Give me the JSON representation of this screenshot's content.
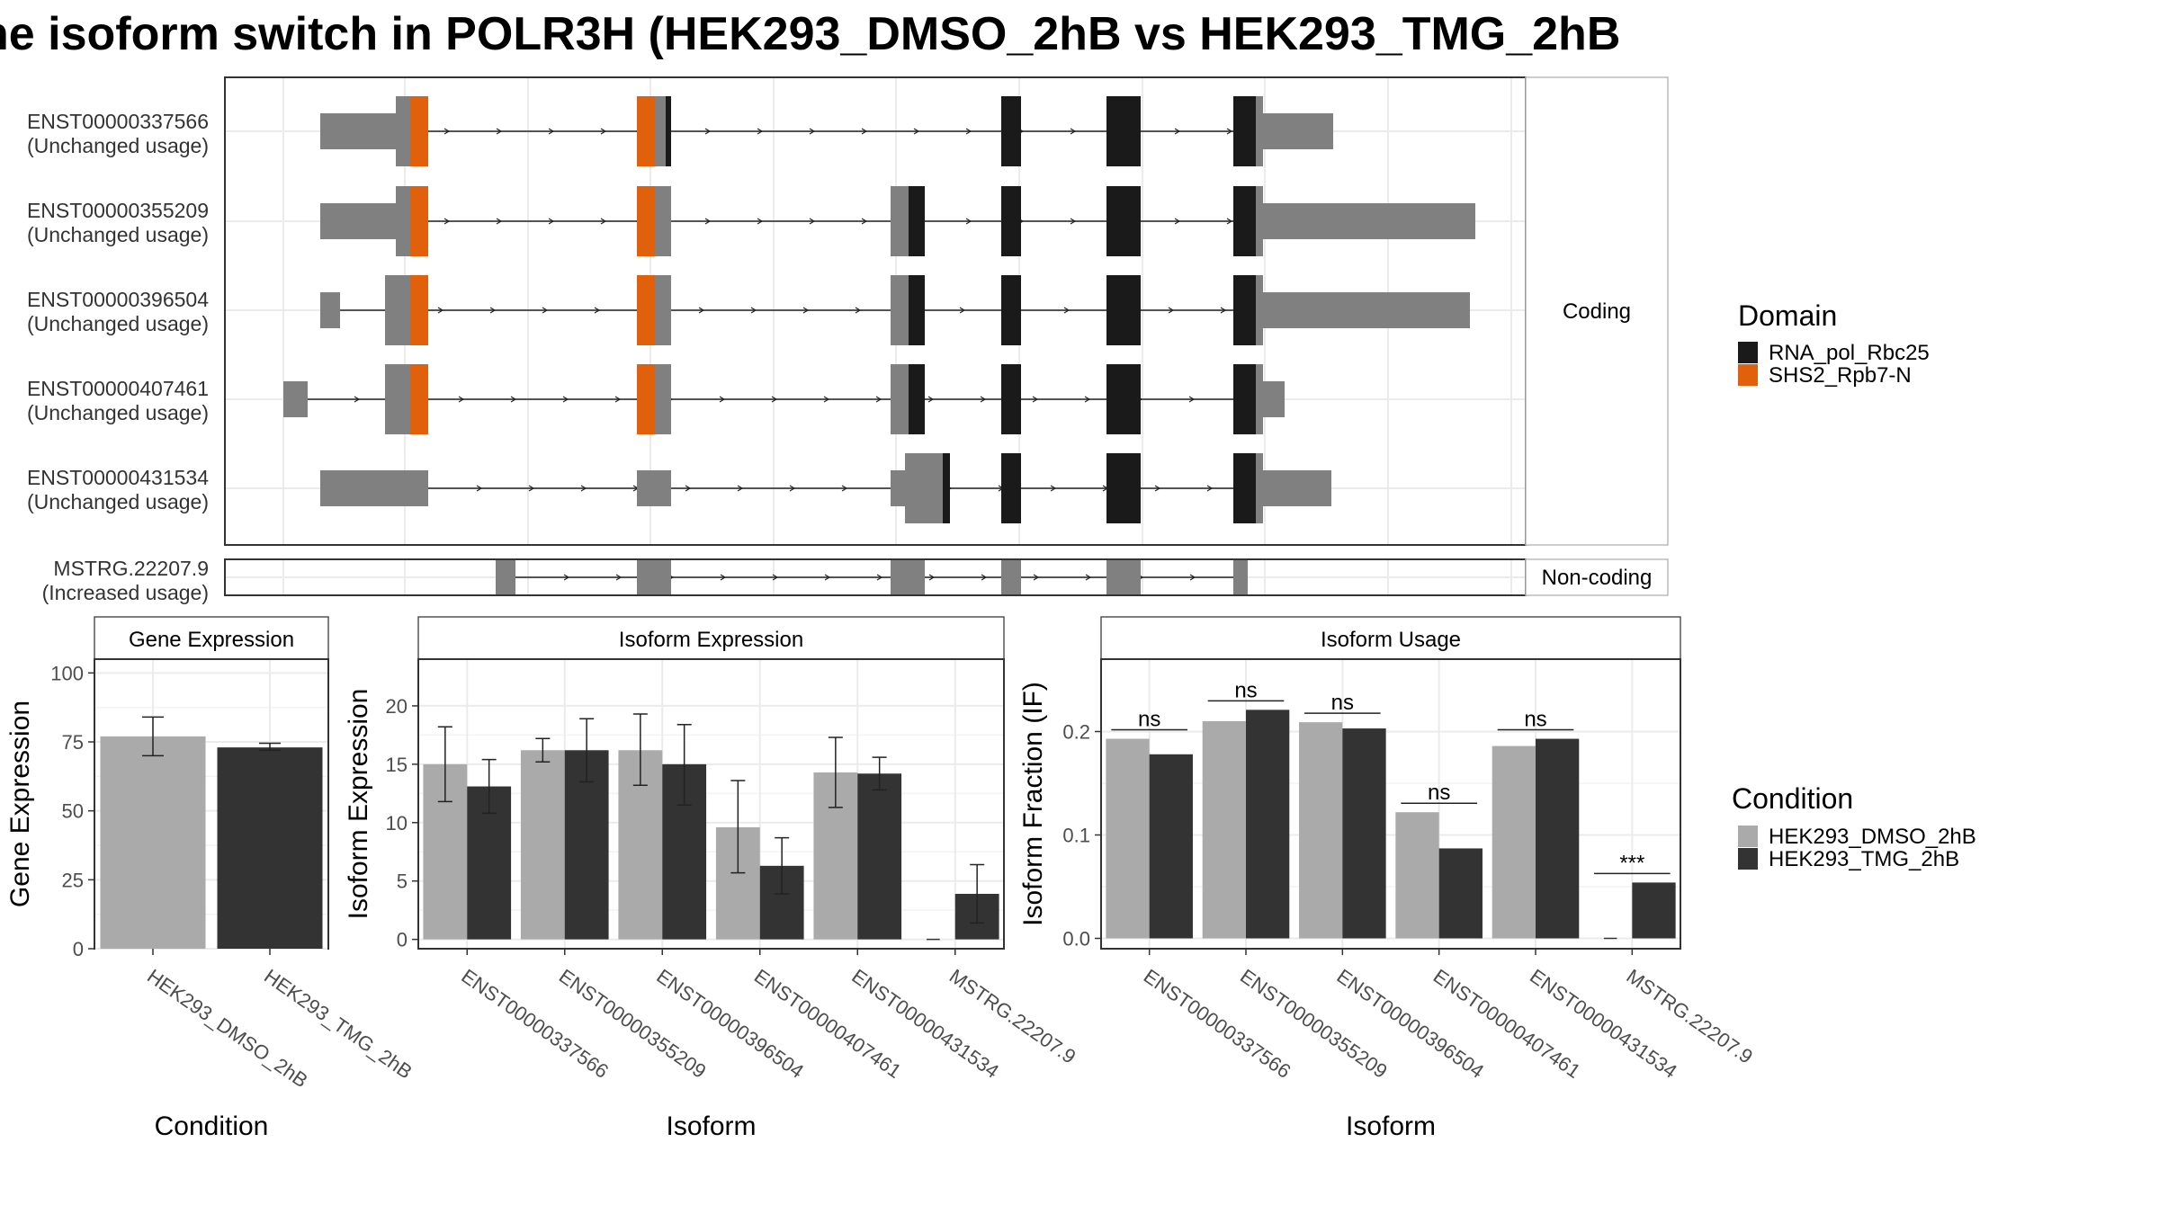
{
  "title": "ne isoform switch in POLR3H (HEK293_DMSO_2hB vs HEK293_TMG_2hB",
  "colors": {
    "utr": "#808080",
    "domain_rna_pol_rbc25": "#1a1a1a",
    "domain_shs2_rpb7n": "#e0600b",
    "dmso": "#aaaaaa",
    "tmg": "#333333",
    "grid": "#ebebeb"
  },
  "structure": {
    "coding_strip": "Coding",
    "noncoding_strip": "Non-coding",
    "transcripts": [
      {
        "id": "ENST00000337566",
        "status": "(Unchanged usage)"
      },
      {
        "id": "ENST00000355209",
        "status": "(Unchanged usage)"
      },
      {
        "id": "ENST00000396504",
        "status": "(Unchanged usage)"
      },
      {
        "id": "ENST00000407461",
        "status": "(Unchanged usage)"
      },
      {
        "id": "ENST00000431534",
        "status": "(Unchanged usage)"
      }
    ],
    "noncoding": {
      "id": "MSTRG.22207.9",
      "status": "(Increased usage)"
    }
  },
  "legend_domain": {
    "title": "Domain",
    "items": [
      "RNA_pol_Rbc25",
      "SHS2_Rpb7-N"
    ]
  },
  "legend_condition": {
    "title": "Condition",
    "items": [
      "HEK293_DMSO_2hB",
      "HEK293_TMG_2hB"
    ]
  },
  "chart_data": [
    {
      "type": "bar",
      "title": "Gene Expression",
      "xlabel": "Condition",
      "ylabel": "Gene Expression",
      "categories": [
        "HEK293_DMSO_2hB",
        "HEK293_TMG_2hB"
      ],
      "values": [
        77,
        73
      ],
      "error_low": [
        70,
        72
      ],
      "error_high": [
        84,
        74.5
      ],
      "ylim": [
        0,
        105
      ],
      "yticks": [
        0,
        25,
        50,
        75,
        100
      ]
    },
    {
      "type": "bar",
      "title": "Isoform Expression",
      "xlabel": "Isoform",
      "ylabel": "Isoform Expression",
      "categories": [
        "ENST00000337566",
        "ENST00000355209",
        "ENST00000396504",
        "ENST00000407461",
        "ENST00000431534",
        "MSTRG.22207.9"
      ],
      "series": [
        {
          "name": "HEK293_DMSO_2hB",
          "values": [
            15,
            16.2,
            16.2,
            9.6,
            14.3,
            0
          ],
          "error_low": [
            11.8,
            15.2,
            13.2,
            5.7,
            11.3,
            0
          ],
          "error_high": [
            18.2,
            17.2,
            19.3,
            13.6,
            17.3,
            0
          ]
        },
        {
          "name": "HEK293_TMG_2hB",
          "values": [
            13.1,
            16.2,
            15,
            6.3,
            14.2,
            3.9
          ],
          "error_low": [
            10.8,
            13.5,
            11.5,
            3.9,
            12.8,
            1.4
          ],
          "error_high": [
            15.4,
            18.9,
            18.4,
            8.7,
            15.6,
            6.4
          ]
        }
      ],
      "ylim": [
        -0.8,
        24
      ],
      "yticks": [
        0,
        5,
        10,
        15,
        20
      ]
    },
    {
      "type": "bar",
      "title": "Isoform Usage",
      "xlabel": "Isoform",
      "ylabel": "Isoform Fraction (IF)",
      "categories": [
        "ENST00000337566",
        "ENST00000355209",
        "ENST00000396504",
        "ENST00000407461",
        "ENST00000431534",
        "MSTRG.22207.9"
      ],
      "series": [
        {
          "name": "HEK293_DMSO_2hB",
          "values": [
            0.193,
            0.21,
            0.209,
            0.122,
            0.186,
            0
          ]
        },
        {
          "name": "HEK293_TMG_2hB",
          "values": [
            0.178,
            0.221,
            0.203,
            0.087,
            0.193,
            0.054
          ]
        }
      ],
      "significance": [
        "ns",
        "ns",
        "ns",
        "ns",
        "ns",
        "***"
      ],
      "ylim": [
        -0.01,
        0.27
      ],
      "yticks": [
        0.0,
        0.1,
        0.2
      ],
      "ytick_labels": [
        "0.0",
        "0.1",
        "0.2"
      ]
    }
  ]
}
